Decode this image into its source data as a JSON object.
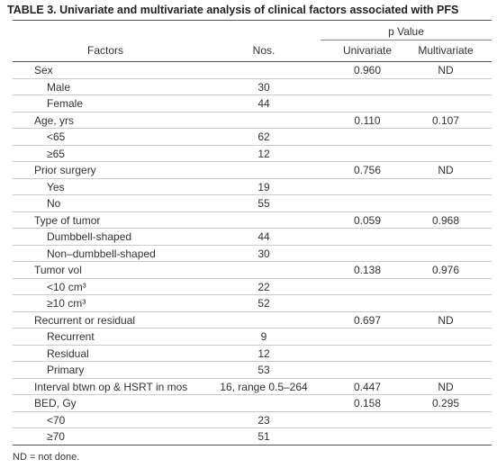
{
  "title": "TABLE 3. Univariate and multivariate analysis of clinical factors associated with PFS",
  "header": {
    "group": "p Value",
    "factors": "Factors",
    "nos": "Nos.",
    "univariate": "Univariate",
    "multivariate": "Multivariate"
  },
  "groups": [
    {
      "label": "Sex",
      "univariate": "0.960",
      "multivariate": "ND",
      "items": [
        {
          "label": "Male",
          "nos": "30"
        },
        {
          "label": "Female",
          "nos": "44"
        }
      ]
    },
    {
      "label": "Age, yrs",
      "univariate": "0.110",
      "multivariate": "0.107",
      "items": [
        {
          "label": "<65",
          "nos": "62"
        },
        {
          "label": "≥65",
          "nos": "12"
        }
      ]
    },
    {
      "label": "Prior surgery",
      "univariate": "0.756",
      "multivariate": "ND",
      "items": [
        {
          "label": "Yes",
          "nos": "19"
        },
        {
          "label": "No",
          "nos": "55"
        }
      ]
    },
    {
      "label": "Type of tumor",
      "univariate": "0.059",
      "multivariate": "0.968",
      "items": [
        {
          "label": "Dumbbell-shaped",
          "nos": "44"
        },
        {
          "label": "Non–dumbbell-shaped",
          "nos": "30"
        }
      ]
    },
    {
      "label": "Tumor vol",
      "univariate": "0.138",
      "multivariate": "0.976",
      "items": [
        {
          "label": "<10 cm³",
          "nos": "22"
        },
        {
          "label": "≥10 cm³",
          "nos": "52"
        }
      ]
    },
    {
      "label": "Recurrent or residual",
      "univariate": "0.697",
      "multivariate": "ND",
      "items": [
        {
          "label": "Recurrent",
          "nos": "9"
        },
        {
          "label": "Residual",
          "nos": "12"
        },
        {
          "label": "Primary",
          "nos": "53"
        }
      ]
    },
    {
      "label": "Interval btwn op & HSRT in mos",
      "nos": "16, range 0.5–264",
      "univariate": "0.447",
      "multivariate": "ND",
      "items": []
    },
    {
      "label": "BED, Gy",
      "univariate": "0.158",
      "multivariate": "0.295",
      "items": [
        {
          "label": "<70",
          "nos": "23"
        },
        {
          "label": "≥70",
          "nos": "51"
        }
      ]
    }
  ],
  "footnote": "ND = not done."
}
